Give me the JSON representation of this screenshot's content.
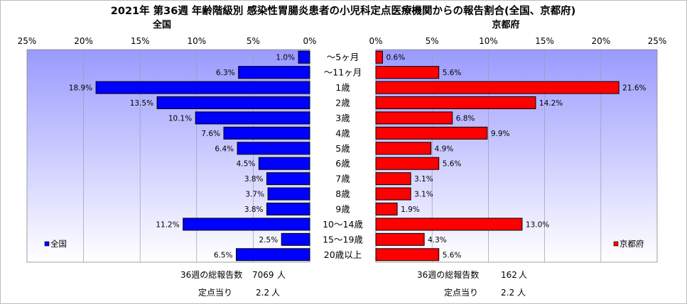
{
  "title": "2021年 第36週 年齢階級別 感染性胃腸炎患者の小児科定点医療機関からの報告割合(全国、京都府)",
  "categories": [
    "～5ヶ月",
    "～11ヶ月",
    "1歳",
    "2歳",
    "3歳",
    "4歳",
    "5歳",
    "6歳",
    "7歳",
    "8歳",
    "9歳",
    "10～14歳",
    "15～19歳",
    "20歳以上"
  ],
  "colors": {
    "plot_background_top": "#9a9aff",
    "plot_background_bottom": "#ffffff",
    "national_bar": "#0000ff",
    "kyoto_bar": "#ff0000",
    "gridline": "#9a9ab4"
  },
  "panels": {
    "national": {
      "label": "全国",
      "legend": "全国",
      "legend_position": "bottom-left",
      "axis_direction": "reversed",
      "report_count_label": "36週の総報告数",
      "report_count_value": "7069",
      "report_count_unit": "人",
      "per_site_label": "定点当り",
      "per_site_value": "2.2",
      "per_site_unit": "人"
    },
    "kyoto": {
      "label": "京都府",
      "legend": "京都府",
      "legend_position": "bottom-right",
      "axis_direction": "normal",
      "report_count_label": "36週の総報告数",
      "report_count_value": "162",
      "report_count_unit": "人",
      "per_site_label": "定点当り",
      "per_site_value": "2.2",
      "per_site_unit": "人"
    }
  },
  "chart_data": {
    "type": "bar",
    "orientation": "horizontal",
    "layout": "back-to-back",
    "title": "2021年 第36週 年齢階級別 感染性胃腸炎患者の小児科定点医療機関からの報告割合(全国、京都府)",
    "categories": [
      "～5ヶ月",
      "～11ヶ月",
      "1歳",
      "2歳",
      "3歳",
      "4歳",
      "5歳",
      "6歳",
      "7歳",
      "8歳",
      "9歳",
      "10～14歳",
      "15～19歳",
      "20歳以上"
    ],
    "xlim": [
      0,
      25
    ],
    "x_ticks": [
      0,
      5,
      10,
      15,
      20,
      25
    ],
    "tick_suffix": "%",
    "grid": true,
    "series": [
      {
        "name": "全国",
        "values": [
          1.0,
          6.3,
          18.9,
          13.5,
          10.1,
          7.6,
          6.4,
          4.5,
          3.8,
          3.7,
          3.8,
          11.2,
          2.5,
          6.5
        ],
        "labels": [
          "1.0%",
          "6.3%",
          "18.9%",
          "13.5%",
          "10.1%",
          "7.6%",
          "6.4%",
          "4.5%",
          "3.8%",
          "3.7%",
          "3.8%",
          "11.2%",
          "2.5%",
          "6.5%"
        ]
      },
      {
        "name": "京都府",
        "values": [
          0.6,
          5.6,
          21.6,
          14.2,
          6.8,
          9.9,
          4.9,
          5.6,
          3.1,
          3.1,
          1.9,
          13.0,
          4.3,
          5.6
        ],
        "labels": [
          "0.6%",
          "5.6%",
          "21.6%",
          "14.2%",
          "6.8%",
          "9.9%",
          "4.9%",
          "5.6%",
          "3.1%",
          "3.1%",
          "1.9%",
          "13.0%",
          "4.3%",
          "5.6%"
        ]
      }
    ]
  }
}
